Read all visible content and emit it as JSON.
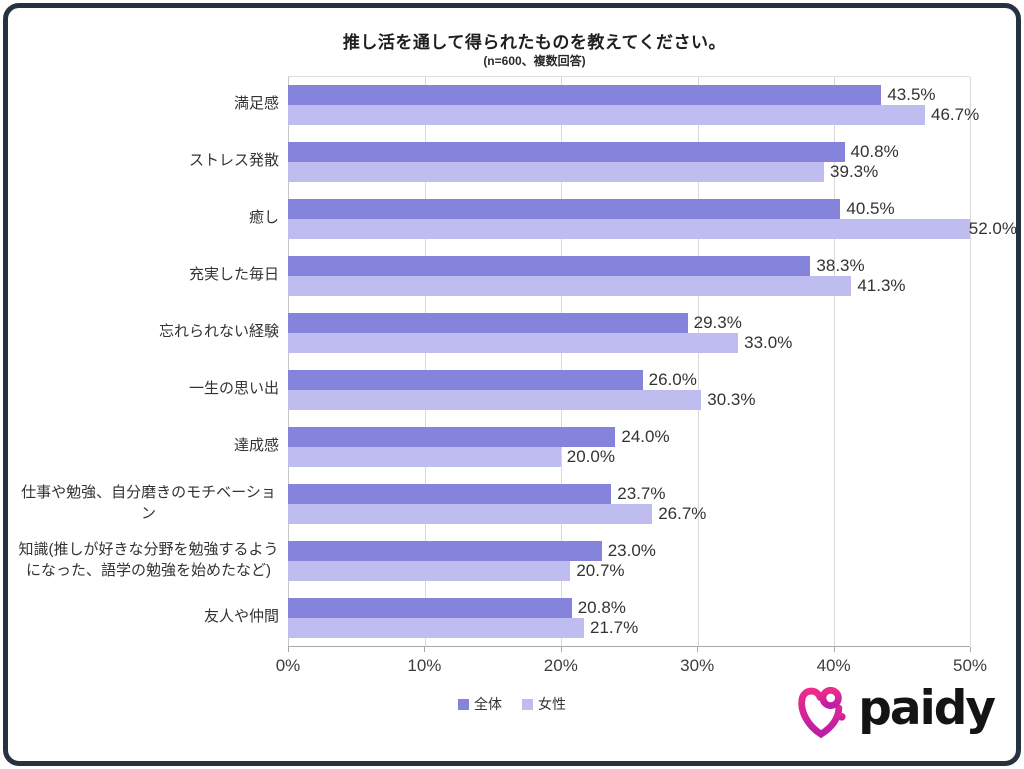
{
  "title": "推し活を通して得られたものを教えてください。",
  "subtitle": "(n=600、複数回答)",
  "chart_data": {
    "type": "bar",
    "orientation": "horizontal",
    "title": "推し活を通して得られたものを教えてください。",
    "sample_note": "(n=600、複数回答)",
    "categories": [
      "満足感",
      "ストレス発散",
      "癒し",
      "充実した毎日",
      "忘れられない経験",
      "一生の思い出",
      "達成感",
      "仕事や勉強、自分磨きのモチベーション",
      "知識(推しが好きな分野を勉強するようになった、語学の勉強を始めたなど)",
      "友人や仲間"
    ],
    "series": [
      {
        "name": "全体",
        "color": "#8583db",
        "values": [
          43.5,
          40.8,
          40.5,
          38.3,
          29.3,
          26.0,
          24.0,
          23.7,
          23.0,
          20.8
        ]
      },
      {
        "name": "女性",
        "color": "#bfbdf0",
        "values": [
          46.7,
          39.3,
          52.0,
          41.3,
          33.0,
          30.3,
          20.0,
          26.7,
          20.7,
          21.7
        ]
      }
    ],
    "axis": {
      "min": 0,
      "max": 50,
      "tick_step": 10,
      "tick_labels": [
        "0%",
        "10%",
        "20%",
        "30%",
        "40%",
        "50%"
      ],
      "grid": true
    },
    "value_suffix": "%",
    "legend_position": "bottom"
  },
  "colors": {
    "series_all": "#8583db",
    "series_female": "#bfbdf0",
    "gridline": "#d9d9d9",
    "card_border": "#26323e",
    "logo_pink_top": "#ee2a8b",
    "logo_purple_bottom": "#bb1fa6"
  },
  "branding": {
    "wordmark": "paidy",
    "icon": "paidy-heart-icon"
  }
}
